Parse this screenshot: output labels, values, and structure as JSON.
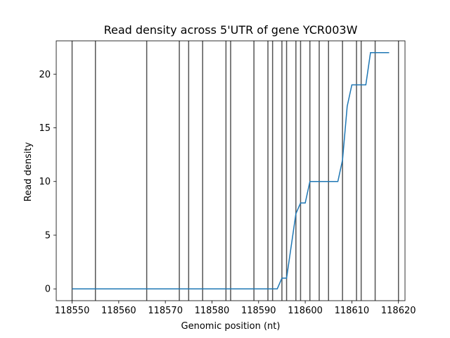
{
  "chart_data": {
    "type": "line",
    "title": "Read density across 5'UTR of gene YCR003W",
    "xlabel": "Genomic position (nt)",
    "ylabel": "Read density",
    "xlim": [
      118546.6,
      118621.4
    ],
    "ylim": [
      -1.1,
      23.1
    ],
    "xticks": [
      118550,
      118560,
      118570,
      118580,
      118590,
      118600,
      118610,
      118620
    ],
    "yticks": [
      0,
      5,
      10,
      15,
      20
    ],
    "grid": false,
    "legend": "none",
    "colors": {
      "line": "#1f77b4",
      "vline": "#555555"
    },
    "vertical_lines": [
      118550,
      118555,
      118566,
      118573,
      118575,
      118578,
      118583,
      118584,
      118589,
      118592,
      118593,
      118595,
      118596,
      118598,
      118599,
      118601,
      118603,
      118605,
      118608,
      118611,
      118612,
      118615,
      118620
    ],
    "series": [
      {
        "x": [
          118550,
          118594,
          118595,
          118596,
          118597,
          118598,
          118599,
          118600,
          118601,
          118602,
          118603,
          118604,
          118605,
          118606,
          118607,
          118608,
          118609,
          118610,
          118611,
          118612,
          118613,
          118614,
          118615,
          118616,
          118617,
          118618
        ],
        "y": [
          0,
          0,
          1,
          1,
          4,
          7,
          8,
          8,
          10,
          10,
          10,
          10,
          10,
          10,
          10,
          12,
          17,
          19,
          19,
          19,
          19,
          22,
          22,
          22,
          22,
          22
        ]
      }
    ]
  }
}
